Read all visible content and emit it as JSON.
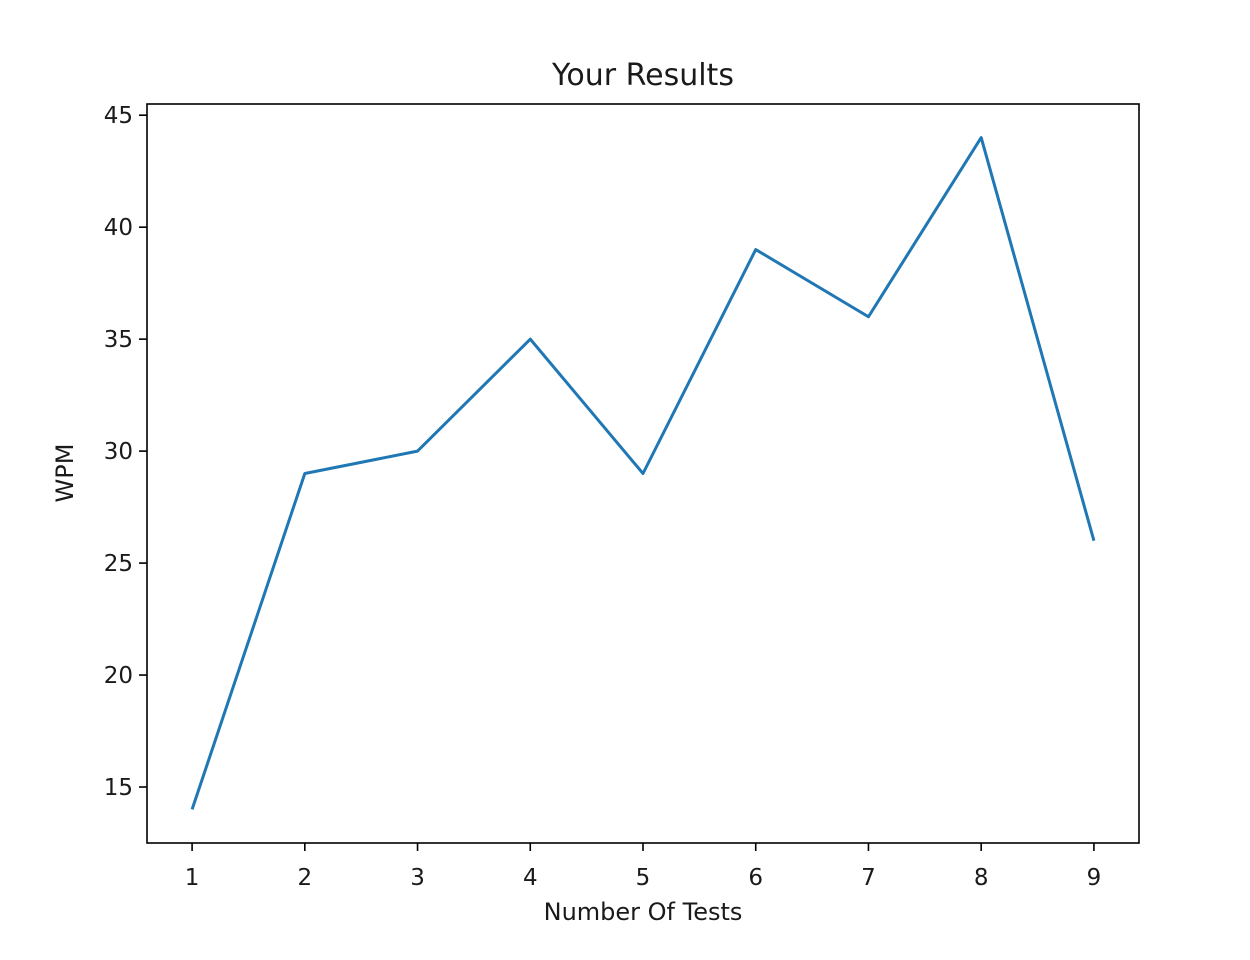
{
  "chart_data": {
    "type": "line",
    "title": "Your Results",
    "xlabel": "Number Of Tests",
    "ylabel": "WPM",
    "x": [
      1,
      2,
      3,
      4,
      5,
      6,
      7,
      8,
      9
    ],
    "series": [
      {
        "values": [
          14,
          29,
          30,
          35,
          29,
          39,
          36,
          44,
          26
        ],
        "color": "#1f77b4"
      }
    ],
    "xticks": [
      "1",
      "2",
      "3",
      "4",
      "5",
      "6",
      "7",
      "8",
      "9"
    ],
    "yticks": [
      "15",
      "20",
      "25",
      "30",
      "35",
      "40",
      "45"
    ],
    "xlim": [
      0.6,
      9.4
    ],
    "ylim": [
      12.5,
      45.5
    ],
    "grid": false,
    "legend": "none"
  }
}
